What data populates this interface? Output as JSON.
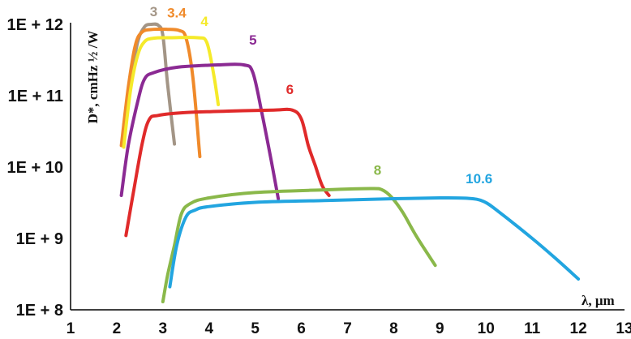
{
  "chart_data": {
    "type": "line",
    "title": "",
    "xlabel": "λ, μm",
    "ylabel": "D*, cmHz ½ /W",
    "xlim": [
      1,
      13
    ],
    "ylim": [
      100000000.0,
      1000000000000.0
    ],
    "yscale": "log",
    "grid": false,
    "x_ticks": [
      "1",
      "2",
      "3",
      "4",
      "5",
      "6",
      "7",
      "8",
      "9",
      "10",
      "11",
      "12",
      "13"
    ],
    "y_ticks": [
      {
        "value": 1000000000000.0,
        "label": "1E + 12"
      },
      {
        "value": 100000000000.0,
        "label": "1E + 11"
      },
      {
        "value": 10000000000.0,
        "label": "1E + 10"
      },
      {
        "value": 1000000000.0,
        "label": "1E + 9"
      },
      {
        "value": 100000000.0,
        "label": "1E + 8"
      }
    ],
    "series": [
      {
        "name": "3",
        "color": "#a39586",
        "label_at": [
          2.8,
          1300000000000.0
        ],
        "points": [
          [
            2.15,
            38000000000.0
          ],
          [
            2.3,
            150000000000.0
          ],
          [
            2.45,
            550000000000.0
          ],
          [
            2.6,
            920000000000.0
          ],
          [
            2.75,
            1000000000000.0
          ],
          [
            2.9,
            970000000000.0
          ],
          [
            3.0,
            700000000000.0
          ],
          [
            3.1,
            150000000000.0
          ],
          [
            3.25,
            21000000000.0
          ]
        ]
      },
      {
        "name": "3.4",
        "color": "#f08a2a",
        "label_at": [
          3.3,
          1250000000000.0
        ],
        "points": [
          [
            2.1,
            20000000000.0
          ],
          [
            2.25,
            130000000000.0
          ],
          [
            2.4,
            500000000000.0
          ],
          [
            2.55,
            780000000000.0
          ],
          [
            2.8,
            850000000000.0
          ],
          [
            3.1,
            850000000000.0
          ],
          [
            3.35,
            820000000000.0
          ],
          [
            3.5,
            650000000000.0
          ],
          [
            3.65,
            180000000000.0
          ],
          [
            3.8,
            14000000000.0
          ]
        ]
      },
      {
        "name": "4",
        "color": "#f5ea2a",
        "label_at": [
          3.9,
          950000000000.0
        ],
        "points": [
          [
            2.15,
            19000000000.0
          ],
          [
            2.3,
            120000000000.0
          ],
          [
            2.45,
            360000000000.0
          ],
          [
            2.6,
            570000000000.0
          ],
          [
            2.8,
            640000000000.0
          ],
          [
            3.2,
            650000000000.0
          ],
          [
            3.75,
            650000000000.0
          ],
          [
            3.95,
            560000000000.0
          ],
          [
            4.1,
            200000000000.0
          ],
          [
            4.2,
            75000000000.0
          ]
        ]
      },
      {
        "name": "5",
        "color": "#8b2a93",
        "label_at": [
          4.95,
          520000000000.0
        ],
        "points": [
          [
            2.1,
            4000000000.0
          ],
          [
            2.25,
            20000000000.0
          ],
          [
            2.45,
            80000000000.0
          ],
          [
            2.6,
            170000000000.0
          ],
          [
            2.8,
            210000000000.0
          ],
          [
            3.3,
            250000000000.0
          ],
          [
            4.2,
            270000000000.0
          ],
          [
            4.75,
            270000000000.0
          ],
          [
            4.95,
            210000000000.0
          ],
          [
            5.15,
            55000000000.0
          ],
          [
            5.35,
            12000000000.0
          ],
          [
            5.5,
            3600000000.0
          ]
        ]
      },
      {
        "name": "6",
        "color": "#e02a2a",
        "label_at": [
          5.75,
          105000000000.0
        ],
        "points": [
          [
            2.2,
            1100000000.0
          ],
          [
            2.35,
            4000000000.0
          ],
          [
            2.55,
            21000000000.0
          ],
          [
            2.7,
            46000000000.0
          ],
          [
            2.9,
            53000000000.0
          ],
          [
            3.5,
            58000000000.0
          ],
          [
            4.5,
            61000000000.0
          ],
          [
            5.4,
            63000000000.0
          ],
          [
            5.8,
            63000000000.0
          ],
          [
            6.0,
            47000000000.0
          ],
          [
            6.15,
            20000000000.0
          ],
          [
            6.3,
            10500000000.0
          ],
          [
            6.45,
            5500000000.0
          ],
          [
            6.6,
            4000000000.0
          ]
        ]
      },
      {
        "name": "8",
        "color": "#8ab84a",
        "label_at": [
          7.65,
          7800000000.0
        ],
        "points": [
          [
            3.0,
            130000000.0
          ],
          [
            3.1,
            300000000.0
          ],
          [
            3.25,
            800000000.0
          ],
          [
            3.4,
            2200000000.0
          ],
          [
            3.6,
            3100000000.0
          ],
          [
            4.0,
            3700000000.0
          ],
          [
            5.0,
            4400000000.0
          ],
          [
            6.5,
            4800000000.0
          ],
          [
            7.5,
            5000000000.0
          ],
          [
            7.75,
            4800000000.0
          ],
          [
            7.95,
            3800000000.0
          ],
          [
            8.2,
            2300000000.0
          ],
          [
            8.5,
            1050000000.0
          ],
          [
            8.9,
            420000000.0
          ]
        ]
      },
      {
        "name": "10.6",
        "color": "#22a5e0",
        "label_at": [
          9.85,
          5900000000.0
        ],
        "points": [
          [
            3.15,
            210000000.0
          ],
          [
            3.3,
            800000000.0
          ],
          [
            3.5,
            2000000000.0
          ],
          [
            3.7,
            2500000000.0
          ],
          [
            4.0,
            2800000000.0
          ],
          [
            5.0,
            3200000000.0
          ],
          [
            6.5,
            3400000000.0
          ],
          [
            8.0,
            3600000000.0
          ],
          [
            9.0,
            3700000000.0
          ],
          [
            9.6,
            3650000000.0
          ],
          [
            9.95,
            3300000000.0
          ],
          [
            10.3,
            2300000000.0
          ],
          [
            11.0,
            1000000000.0
          ],
          [
            11.5,
            530000000.0
          ],
          [
            12.0,
            270000000.0
          ]
        ]
      }
    ]
  }
}
